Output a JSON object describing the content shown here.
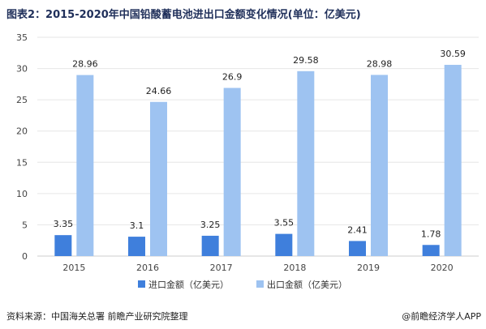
{
  "title": "图表2：2015-2020年中国铅酸蓄电池进出口金额变化情况(单位：亿美元)",
  "source": "资料来源：中国海关总署 前瞻产业研究院整理",
  "brand": "@前瞻经济学人APP",
  "colors": {
    "import": "#3f7fdc",
    "export": "#9ec3f1",
    "axis_text": "#444444",
    "grid": "#e6e6e6"
  },
  "chart_data": {
    "type": "bar",
    "categories": [
      "2015",
      "2016",
      "2017",
      "2018",
      "2019",
      "2020"
    ],
    "series": [
      {
        "name": "进口金额（亿美元）",
        "values": [
          3.35,
          3.1,
          3.25,
          3.55,
          2.41,
          1.78
        ]
      },
      {
        "name": "出口金额（亿美元）",
        "values": [
          28.96,
          24.66,
          26.9,
          29.58,
          28.98,
          30.59
        ]
      }
    ],
    "y_ticks": [
      "0",
      "5",
      "10",
      "15",
      "20",
      "25",
      "30",
      "35"
    ],
    "ylim": [
      0,
      35
    ],
    "grid": true,
    "legend_position": "bottom"
  }
}
